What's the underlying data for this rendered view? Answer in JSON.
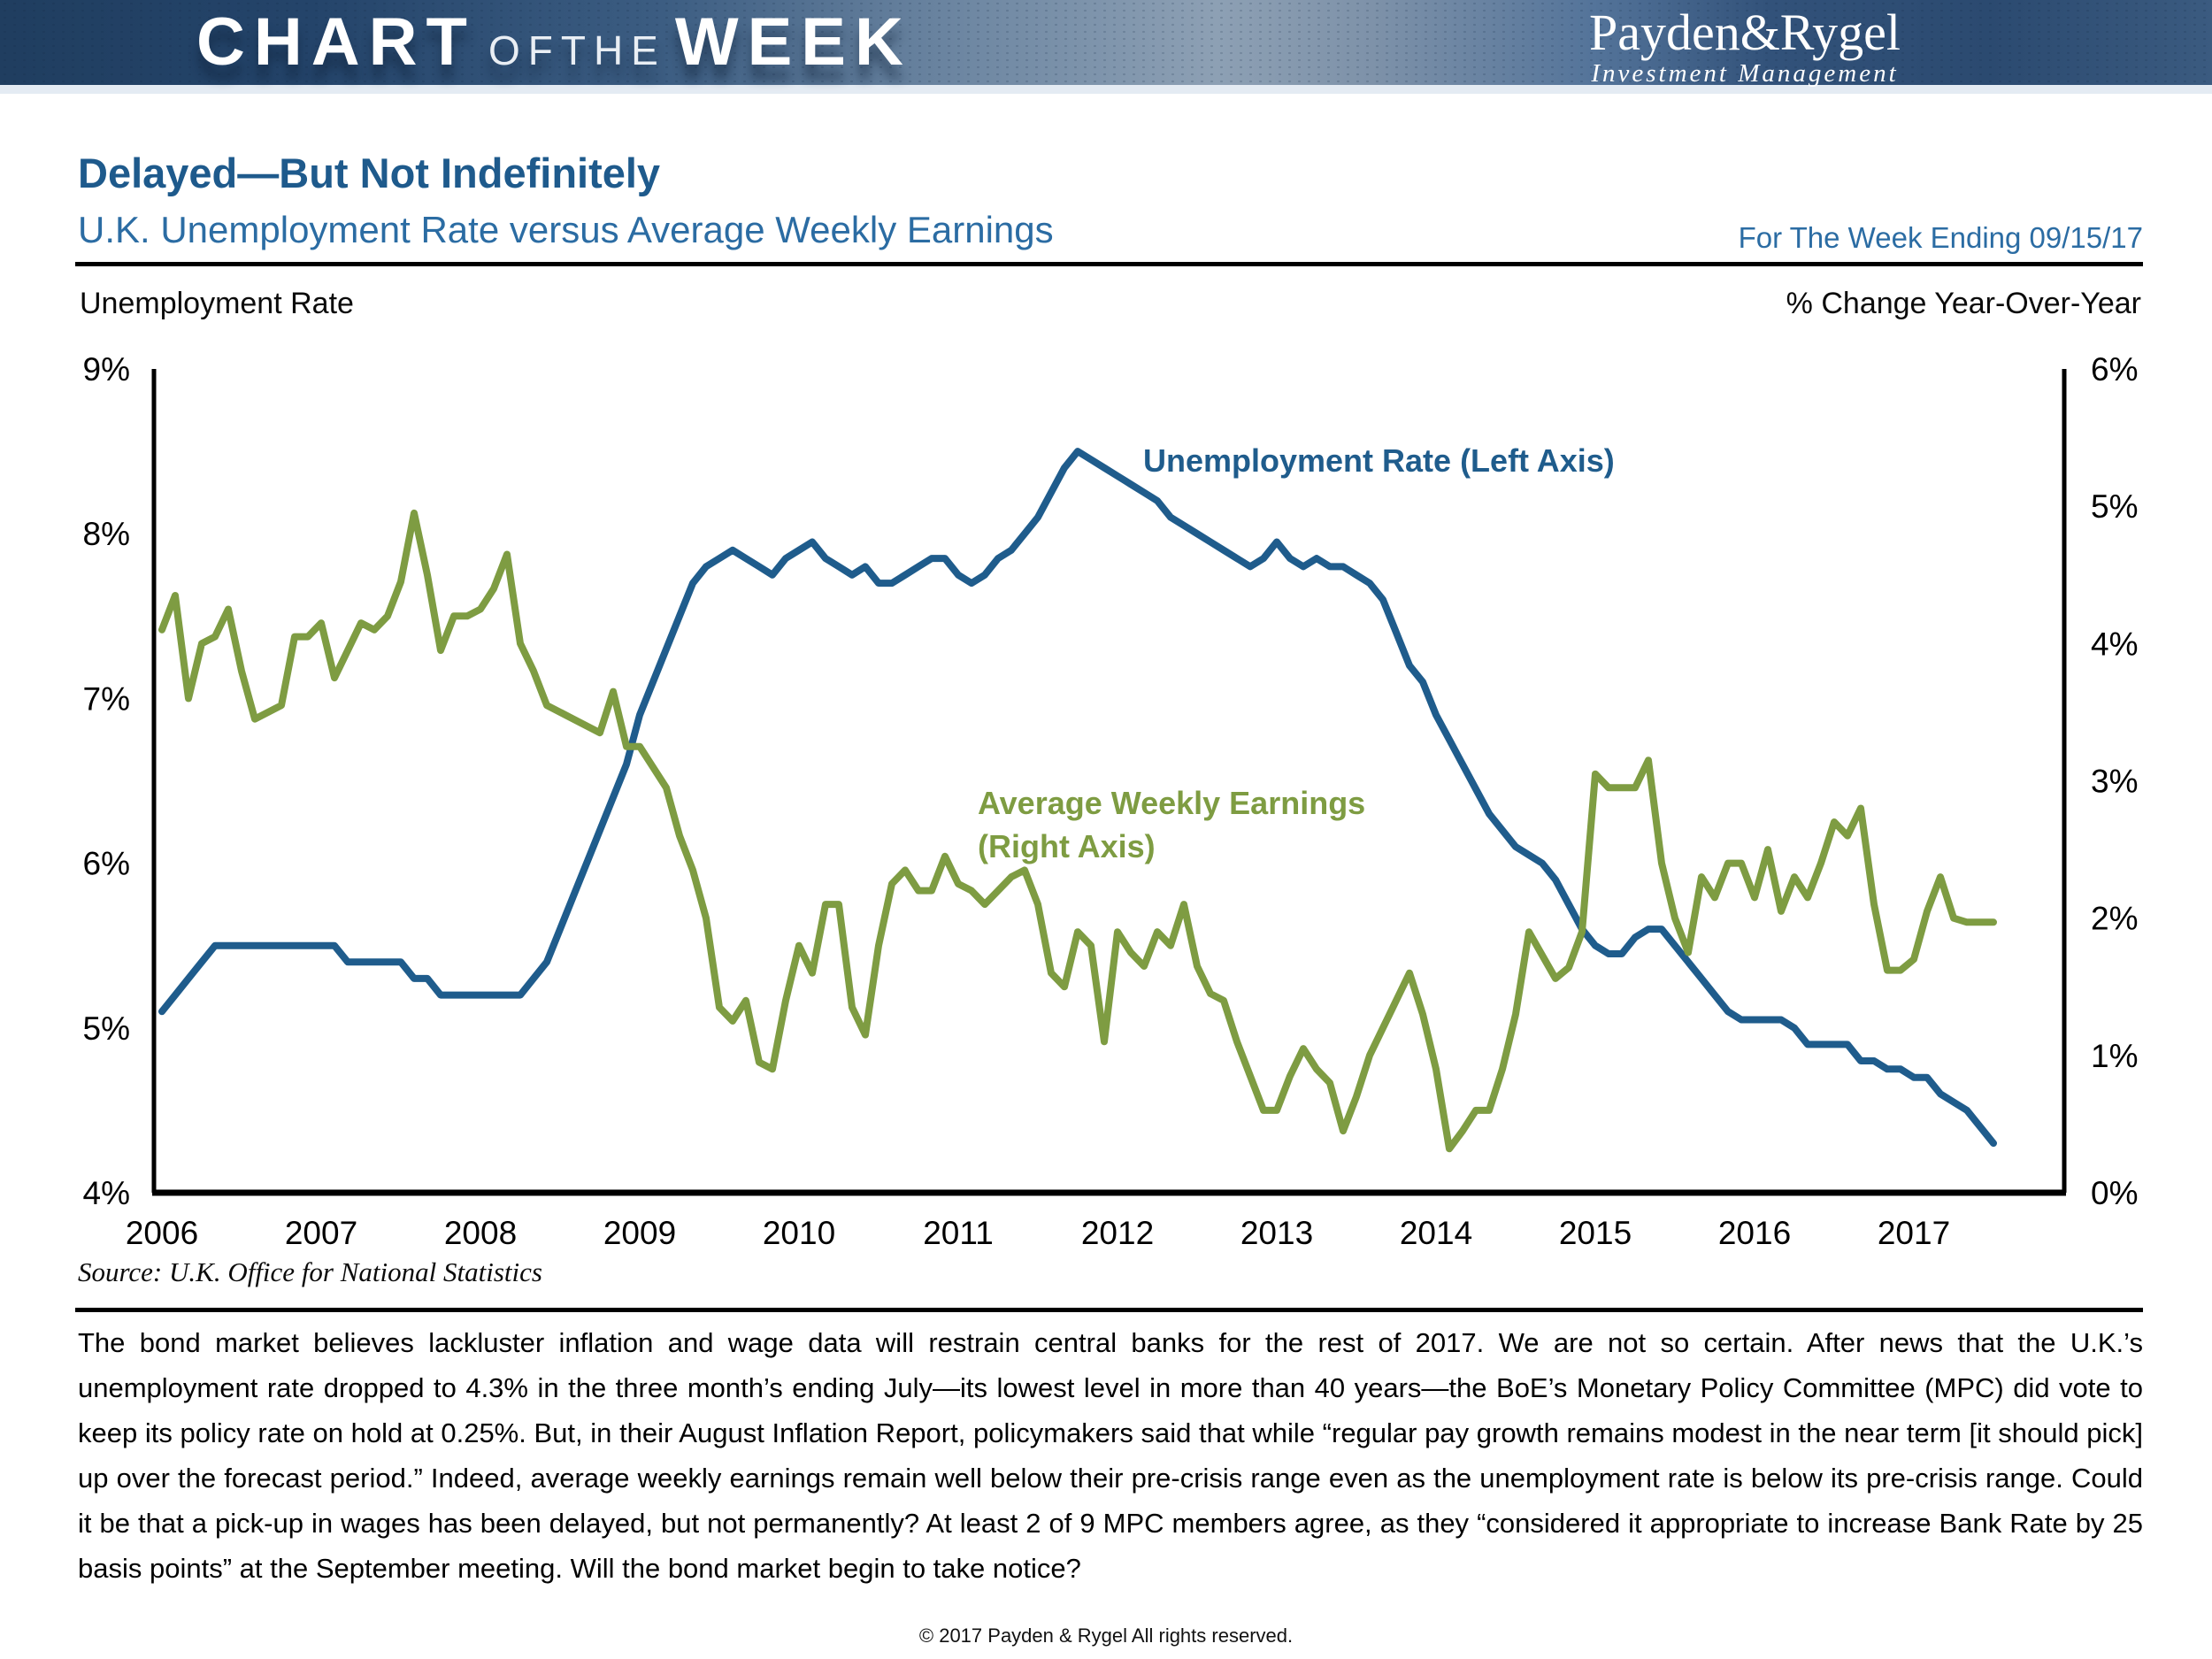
{
  "banner": {
    "brand_chart": "CHART",
    "brand_of": "OF",
    "brand_the": "THE",
    "brand_week": "WEEK",
    "logo_name": "Payden&Rygel",
    "logo_tagline": "Investment Management"
  },
  "header": {
    "title": "Delayed—But Not Indefinitely",
    "subtitle": "U.K. Unemployment Rate versus Average Weekly Earnings",
    "week_ending": "For The Week Ending 09/15/17"
  },
  "chart_captions": {
    "left_axis_caption": "Unemployment Rate",
    "right_axis_caption": "% Change Year-Over-Year",
    "unemployment_annotation": "Unemployment Rate (Left Axis)",
    "awe_annotation_line1": "Average Weekly Earnings",
    "awe_annotation_line2": "(Right Axis)"
  },
  "chart_data": {
    "type": "line",
    "title": "U.K. Unemployment Rate versus Average Weekly Earnings",
    "x_start": "2006-01",
    "frequency": "monthly",
    "x_tick_labels": [
      "2006",
      "2007",
      "2008",
      "2009",
      "2010",
      "2011",
      "2012",
      "2013",
      "2014",
      "2015",
      "2016",
      "2017"
    ],
    "grid": false,
    "legend_position": "inline-annotations",
    "left_axis": {
      "label": "Unemployment Rate",
      "ylim": [
        4,
        9
      ],
      "ticks": [
        "9%",
        "8%",
        "7%",
        "6%",
        "5%",
        "4%"
      ],
      "tick_values": [
        9,
        8,
        7,
        6,
        5,
        4
      ]
    },
    "right_axis": {
      "label": "% Change Year-Over-Year",
      "ylim": [
        0,
        6
      ],
      "ticks": [
        "6%",
        "5%",
        "4%",
        "3%",
        "2%",
        "1%",
        "0%"
      ],
      "tick_values": [
        6,
        5,
        4,
        3,
        2,
        1,
        0
      ]
    },
    "series": [
      {
        "name": "Unemployment Rate",
        "axis": "left",
        "color": "#1F5C8C",
        "values": [
          5.1,
          5.2,
          5.3,
          5.4,
          5.5,
          5.5,
          5.5,
          5.5,
          5.5,
          5.5,
          5.5,
          5.5,
          5.5,
          5.5,
          5.4,
          5.4,
          5.4,
          5.4,
          5.4,
          5.3,
          5.3,
          5.2,
          5.2,
          5.2,
          5.2,
          5.2,
          5.2,
          5.2,
          5.3,
          5.4,
          5.6,
          5.8,
          6.0,
          6.2,
          6.4,
          6.6,
          6.9,
          7.1,
          7.3,
          7.5,
          7.7,
          7.8,
          7.85,
          7.9,
          7.85,
          7.8,
          7.75,
          7.85,
          7.9,
          7.95,
          7.85,
          7.8,
          7.75,
          7.8,
          7.7,
          7.7,
          7.75,
          7.8,
          7.85,
          7.85,
          7.75,
          7.7,
          7.75,
          7.85,
          7.9,
          8.0,
          8.1,
          8.25,
          8.4,
          8.5,
          8.45,
          8.4,
          8.35,
          8.3,
          8.25,
          8.2,
          8.1,
          8.05,
          8.0,
          7.95,
          7.9,
          7.85,
          7.8,
          7.85,
          7.95,
          7.85,
          7.8,
          7.85,
          7.8,
          7.8,
          7.75,
          7.7,
          7.6,
          7.4,
          7.2,
          7.1,
          6.9,
          6.75,
          6.6,
          6.45,
          6.3,
          6.2,
          6.1,
          6.05,
          6.0,
          5.9,
          5.75,
          5.6,
          5.5,
          5.45,
          5.45,
          5.55,
          5.6,
          5.6,
          5.5,
          5.4,
          5.3,
          5.2,
          5.1,
          5.05,
          5.05,
          5.05,
          5.05,
          5.0,
          4.9,
          4.9,
          4.9,
          4.9,
          4.8,
          4.8,
          4.75,
          4.75,
          4.7,
          4.7,
          4.6,
          4.55,
          4.5,
          4.4,
          4.3
        ]
      },
      {
        "name": "Average Weekly Earnings",
        "axis": "right",
        "color": "#7E9C42",
        "values": [
          4.1,
          4.35,
          3.6,
          4.0,
          4.05,
          4.25,
          3.8,
          3.45,
          3.5,
          3.55,
          4.05,
          4.05,
          4.15,
          3.75,
          3.95,
          4.15,
          4.1,
          4.2,
          4.45,
          4.95,
          4.5,
          3.95,
          4.2,
          4.2,
          4.25,
          4.4,
          4.65,
          4.0,
          3.8,
          3.55,
          3.5,
          3.45,
          3.4,
          3.35,
          3.65,
          3.25,
          3.25,
          3.1,
          2.95,
          2.6,
          2.35,
          2.0,
          1.35,
          1.25,
          1.4,
          0.95,
          0.9,
          1.4,
          1.8,
          1.6,
          2.1,
          2.1,
          1.35,
          1.15,
          1.8,
          2.25,
          2.35,
          2.2,
          2.2,
          2.45,
          2.25,
          2.2,
          2.1,
          2.2,
          2.3,
          2.35,
          2.1,
          1.6,
          1.5,
          1.9,
          1.8,
          1.1,
          1.9,
          1.75,
          1.65,
          1.9,
          1.8,
          2.1,
          1.65,
          1.45,
          1.4,
          1.1,
          0.85,
          0.6,
          0.6,
          0.85,
          1.05,
          0.9,
          0.8,
          0.45,
          0.7,
          1.0,
          1.2,
          1.4,
          1.6,
          1.3,
          0.9,
          0.32,
          0.45,
          0.6,
          0.6,
          0.9,
          1.3,
          1.9,
          1.73,
          1.56,
          1.64,
          1.9,
          3.05,
          2.95,
          2.95,
          2.95,
          3.15,
          2.4,
          2.0,
          1.75,
          2.3,
          2.15,
          2.4,
          2.4,
          2.15,
          2.5,
          2.05,
          2.3,
          2.15,
          2.4,
          2.7,
          2.6,
          2.8,
          2.1,
          1.62,
          1.62,
          1.7,
          2.05,
          2.3,
          2.0,
          1.97,
          1.97,
          1.97
        ]
      }
    ]
  },
  "source": "Source: U.K. Office for National Statistics",
  "body": "The bond market believes lackluster inflation and wage data will restrain central banks for the rest of 2017. We are not so certain. After news that the U.K.’s unemployment rate dropped to 4.3% in the three month’s ending July—its lowest level in more than 40 years—the BoE’s Monetary Policy Committee (MPC) did vote to keep its policy rate on hold at 0.25%. But, in their August Inflation Report, policymakers said that while “regular pay growth remains modest in the near term [it should pick] up over the forecast period.” Indeed, average weekly earnings remain well below their pre-crisis range even as the unemployment rate is below its pre-crisis range. Could it be that a pick-up in wages has been delayed, but not permanently? At least 2 of 9 MPC members agree, as they “considered it appropriate to increase Bank Rate by 25 basis points” at the September meeting. Will the bond market begin to take notice?",
  "footer": "© 2017 Payden & Rygel All rights reserved.",
  "colors": {
    "accent_blue": "#1F5C8C",
    "line_green": "#7E9C42",
    "banner_navy": "#203E60"
  }
}
